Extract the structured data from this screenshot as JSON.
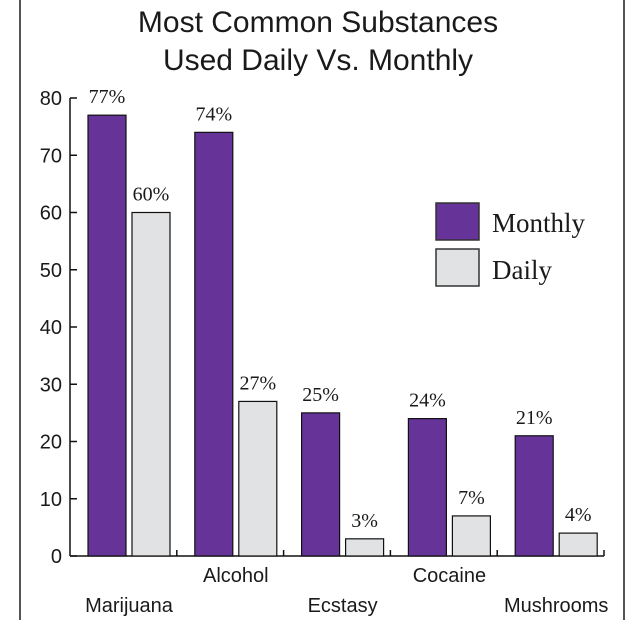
{
  "colors": {
    "monthly": "#663399",
    "daily": "#e1e2e4",
    "bar_stroke": "#111111",
    "frame": "#555555"
  },
  "chart_data": {
    "type": "bar",
    "title": [
      "Most Common Substances",
      "Used Daily Vs. Monthly"
    ],
    "categories": [
      "Marijuana",
      "Alcohol",
      "Ecstasy",
      "Cocaine",
      "Mushrooms"
    ],
    "series": [
      {
        "name": "Monthly",
        "values": [
          77,
          74,
          25,
          24,
          21
        ],
        "labels": [
          "77%",
          "74%",
          "25%",
          "24%",
          "21%"
        ]
      },
      {
        "name": "Daily",
        "values": [
          60,
          27,
          3,
          7,
          4
        ],
        "labels": [
          "60%",
          "27%",
          "3%",
          "7%",
          "4%"
        ]
      }
    ],
    "ylim": [
      0,
      80
    ],
    "yticks": [
      "0",
      "10",
      "20",
      "30",
      "40",
      "50",
      "60",
      "70",
      "80"
    ],
    "grid": false,
    "legend": "right"
  }
}
